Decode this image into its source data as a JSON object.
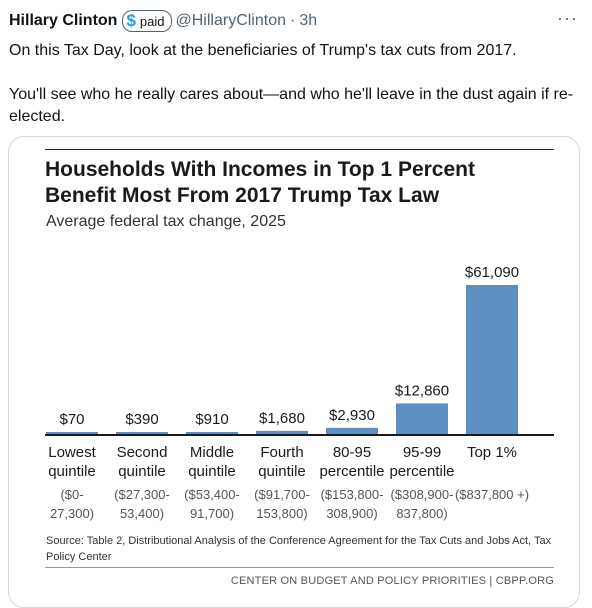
{
  "tweet": {
    "author": "Hillary Clinton",
    "badge_icon": "$",
    "badge_label": "paid",
    "handle": "@HillaryClinton",
    "separator": "·",
    "time": "3h",
    "more_icon": "···",
    "paragraphs": [
      "On this Tax Day, look at the beneficiaries of Trump's tax cuts from 2017.",
      "You'll see who he really cares about—and who he'll leave in the dust again if re-elected."
    ]
  },
  "chart_data": {
    "type": "bar",
    "title_lines": [
      "Households With Incomes in Top 1 Percent",
      "Benefit Most From 2017 Trump Tax Law"
    ],
    "subtitle": "Average federal tax change, 2025",
    "categories": [
      {
        "name": [
          "Lowest",
          "quintile"
        ],
        "range": [
          "($0-",
          "27,300)"
        ]
      },
      {
        "name": [
          "Second",
          "quintile"
        ],
        "range": [
          "($27,300-",
          "53,400)"
        ]
      },
      {
        "name": [
          "Middle",
          "quintile"
        ],
        "range": [
          "($53,400-",
          "91,700)"
        ]
      },
      {
        "name": [
          "Fourth",
          "quintile"
        ],
        "range": [
          "($91,700-",
          "153,800)"
        ]
      },
      {
        "name": [
          "80-95",
          "percentile"
        ],
        "range": [
          "($153,800-",
          "308,900)"
        ]
      },
      {
        "name": [
          "95-99",
          "percentile"
        ],
        "range": [
          "($308,900-",
          "837,800)"
        ]
      },
      {
        "name": [
          "Top 1%"
        ],
        "range": [
          "($837,800 +)"
        ]
      }
    ],
    "values": [
      70,
      390,
      910,
      1680,
      2930,
      12860,
      61090
    ],
    "value_labels": [
      "$70",
      "$390",
      "$910",
      "$1,680",
      "$2,930",
      "$12,860",
      "$61,090"
    ],
    "bar_color": "#5b8ec1",
    "ylim": [
      0,
      61090
    ],
    "source": "Source: Table 2, Distributional Analysis of the Conference Agreement for the Tax Cuts and Jobs Act, Tax Policy Center",
    "footer": "CENTER ON BUDGET AND POLICY PRIORITIES | CBPP.ORG"
  }
}
